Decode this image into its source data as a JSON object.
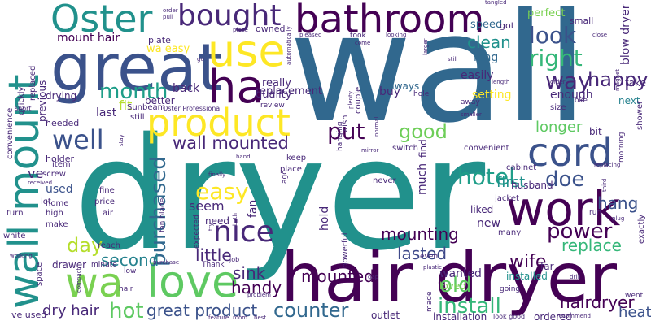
{
  "words": {
    "wall": "wall",
    "dryer": "dryer",
    "hair_dryer": "hair dryer",
    "great": "great",
    "oster": "Oster",
    "bathroom": "bathroom",
    "use": "use",
    "bought": "bought",
    "wall_mount": "wall mount",
    "ha": "ha",
    "product": "product",
    "work": "work",
    "cord": "cord",
    "love": "love",
    "wa": "wa",
    "nice": "nice",
    "well": "well",
    "month": "month",
    "way": "way",
    "look": "look",
    "right": "right",
    "hotel": "hotel",
    "good": "good",
    "put": "put",
    "easy": "easy",
    "wall_mounted": "wall mounted",
    "doe": "doe",
    "happy": "happy",
    "power": "power",
    "install": "install",
    "counter": "counter",
    "old": "old",
    "hot": "hot",
    "great_product": "great product",
    "handy": "handy",
    "dry_hair": "dry hair",
    "purchased": "purchased",
    "day": "day",
    "little": "little",
    "second": "second",
    "sink": "sink",
    "wife": "wife",
    "replace": "replace",
    "mounting": "mounting",
    "mounted": "mounted",
    "lasted": "lasted",
    "wanted": "wanted",
    "hairdryer": "hairdryer",
    "heat": "heat",
    "hang": "hang",
    "first": "first",
    "longer": "longer",
    "clean": "clean",
    "long": "long",
    "easily": "easily",
    "setting": "setting",
    "speed": "speed",
    "perfect": "perfect",
    "enough": "enough",
    "next": "next",
    "take": "take",
    "blow_dryer": "blow dryer",
    "fit": "fit",
    "last": "last",
    "back": "back",
    "replacement": "replacement",
    "really": "really",
    "quality": "quality",
    "buy": "buy",
    "always": "always",
    "used": "used",
    "ve": "ve",
    "mount_hair": "mount hair",
    "wa_easy": "wa easy",
    "seem": "seem",
    "new": "new",
    "liked": "liked",
    "hold": "hold",
    "much": "much",
    "find": "find",
    "fan": "fan",
    "need": "need",
    "loved": "loved",
    "installed": "installed",
    "far": "far",
    "husband": "husband",
    "bit": "bit",
    "ordered": "ordered",
    "outlet": "outlet",
    "installation": "installation",
    "ve_used": "ve used",
    "drawer": "drawer",
    "better": "better",
    "plate": "plate",
    "owned": "owned",
    "got": "got",
    "small": "small",
    "sunbeam": "Sunbeam",
    "oster_professional": "Oster Professional",
    "previous": "previous",
    "drying": "drying",
    "needed": "needed",
    "holder": "holder",
    "item": "item",
    "screw": "screw",
    "lot": "lot",
    "home": "home",
    "high": "high",
    "make": "make",
    "white": "white",
    "turn": "turn",
    "space": "space",
    "convenience": "convenience",
    "quickly": "quickly",
    "replaced": "replaced",
    "short": "short",
    "still": "still",
    "fine": "fine",
    "price": "price",
    "air": "air",
    "reach": "reach",
    "minute": "minute",
    "low": "low",
    "hair": "hair",
    "thank": "Thank",
    "job": "job",
    "place": "place",
    "keep": "keep",
    "never": "never",
    "cabinet": "cabinet",
    "jacket": "jacket",
    "run": "run",
    "many": "many",
    "even": "even",
    "made": "made",
    "switch": "switch",
    "wish": "wish",
    "couple": "couple",
    "review": "review",
    "powerful": "powerful",
    "convenient": "convenient",
    "shower": "shower",
    "morning": "morning",
    "exactly": "exactly",
    "went": "went",
    "going": "going",
    "look_good": "look good",
    "recommend": "recommend",
    "size": "size",
    "oke": "oke",
    "hole": "hole",
    "took": "took",
    "looking": "looking",
    "pleased": "pleased",
    "come": "come",
    "larger": "larger",
    "still_sm": "still",
    "close": "close",
    "magnet": "magnet",
    "order": "order",
    "length": "length",
    "smaller": "smaller",
    "away": "away",
    "plenty": "plenty",
    "hanging": "hanging",
    "normal": "normal",
    "mirror": "mirror",
    "expected": "expected",
    "ago": "ago",
    "bath": "bath",
    "try": "try",
    "fan_blade": "fan blade",
    "finally": "finally",
    "purchase": "purchase",
    "problem": "problem",
    "feature": "feature",
    "room": "room",
    "best": "best",
    "drill": "drill",
    "gap": "gap",
    "plastic": "plastic",
    "third": "third",
    "plug": "plug",
    "replacing": "replacing",
    "stay": "stay",
    "hand": "hand",
    "working": "working",
    "received": "received",
    "compact": "compact",
    "tangled": "tangled",
    "order_top": "order",
    "pull": "pull",
    "piece": "piece",
    "automatically": "automatically",
    "go": "go"
  }
}
